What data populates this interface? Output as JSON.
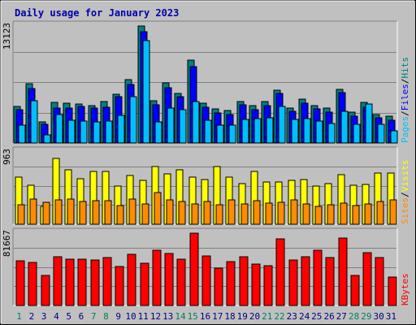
{
  "chart_data": [
    {
      "type": "bar",
      "title": "Daily usage for January 2023",
      "y_max_label": "13123",
      "ylim": [
        0,
        13123
      ],
      "categories": [
        "1",
        "2",
        "3",
        "4",
        "5",
        "6",
        "7",
        "8",
        "9",
        "10",
        "11",
        "12",
        "13",
        "14",
        "15",
        "16",
        "17",
        "18",
        "19",
        "20",
        "21",
        "22",
        "23",
        "24",
        "25",
        "26",
        "27",
        "28",
        "29",
        "30",
        "31"
      ],
      "weekend_days": [
        "1",
        "7",
        "8",
        "14",
        "15",
        "21",
        "22",
        "28",
        "29"
      ],
      "series": [
        {
          "name": "Hits",
          "color": "#008080",
          "values": [
            4070,
            6650,
            2350,
            4580,
            4480,
            4380,
            4230,
            4640,
            5490,
            7090,
            13120,
            4770,
            6740,
            5600,
            9310,
            4490,
            3850,
            3640,
            4690,
            4180,
            4640,
            5930,
            3940,
            4930,
            4230,
            3940,
            5980,
            3450,
            4580,
            3230,
            3040
          ]
        },
        {
          "name": "Files",
          "color": "#0000ff",
          "values": [
            3770,
            6100,
            2130,
            3930,
            3890,
            4080,
            3890,
            3990,
            5220,
            6590,
            12530,
            4290,
            6200,
            5240,
            8550,
            4000,
            3350,
            3200,
            4320,
            3760,
            4200,
            5590,
            3560,
            4490,
            3850,
            3460,
            5640,
            3020,
            4030,
            2820,
            2580
          ]
        },
        {
          "name": "Pages",
          "color": "#00bfff",
          "values": [
            2010,
            4750,
            870,
            3230,
            2550,
            2430,
            2390,
            2420,
            3100,
            5240,
            11440,
            2410,
            3950,
            3780,
            4620,
            2560,
            2030,
            2050,
            2600,
            2720,
            2810,
            4100,
            2600,
            2710,
            2420,
            2160,
            3590,
            2060,
            4360,
            2070,
            1390
          ]
        }
      ]
    },
    {
      "type": "bar",
      "y_max_label": "963",
      "ylim": [
        0,
        963
      ],
      "categories": [
        "1",
        "2",
        "3",
        "4",
        "5",
        "6",
        "7",
        "8",
        "9",
        "10",
        "11",
        "12",
        "13",
        "14",
        "15",
        "16",
        "17",
        "18",
        "19",
        "20",
        "21",
        "22",
        "23",
        "24",
        "25",
        "26",
        "27",
        "28",
        "29",
        "30",
        "31"
      ],
      "series": [
        {
          "name": "Visits",
          "color": "#ffff00",
          "values": [
            630,
            520,
            240,
            880,
            730,
            610,
            700,
            700,
            510,
            650,
            580,
            770,
            670,
            720,
            630,
            600,
            770,
            630,
            540,
            700,
            560,
            560,
            580,
            600,
            510,
            540,
            660,
            520,
            530,
            680,
            680
          ]
        },
        {
          "name": "Sites",
          "color": "#ff8c00",
          "values": [
            260,
            340,
            290,
            320,
            340,
            300,
            310,
            310,
            250,
            340,
            270,
            420,
            320,
            300,
            270,
            300,
            260,
            330,
            270,
            310,
            280,
            290,
            320,
            270,
            240,
            260,
            280,
            250,
            270,
            300,
            320
          ]
        }
      ]
    },
    {
      "type": "bar",
      "y_max_label": "81667",
      "ylim": [
        0,
        81667
      ],
      "categories": [
        "1",
        "2",
        "3",
        "4",
        "5",
        "6",
        "7",
        "8",
        "9",
        "10",
        "11",
        "12",
        "13",
        "14",
        "15",
        "16",
        "17",
        "18",
        "19",
        "20",
        "21",
        "22",
        "23",
        "24",
        "25",
        "26",
        "27",
        "28",
        "29",
        "30",
        "31"
      ],
      "series": [
        {
          "name": "KBytes",
          "color": "#ff0000",
          "values": [
            50600,
            48900,
            34300,
            54900,
            52700,
            52500,
            51300,
            54100,
            44100,
            57800,
            47700,
            62800,
            58600,
            52700,
            81600,
            56200,
            42100,
            49900,
            55300,
            47000,
            45200,
            75400,
            51500,
            55400,
            62800,
            53700,
            76500,
            34300,
            59400,
            54200,
            31900
          ]
        }
      ]
    }
  ]
}
